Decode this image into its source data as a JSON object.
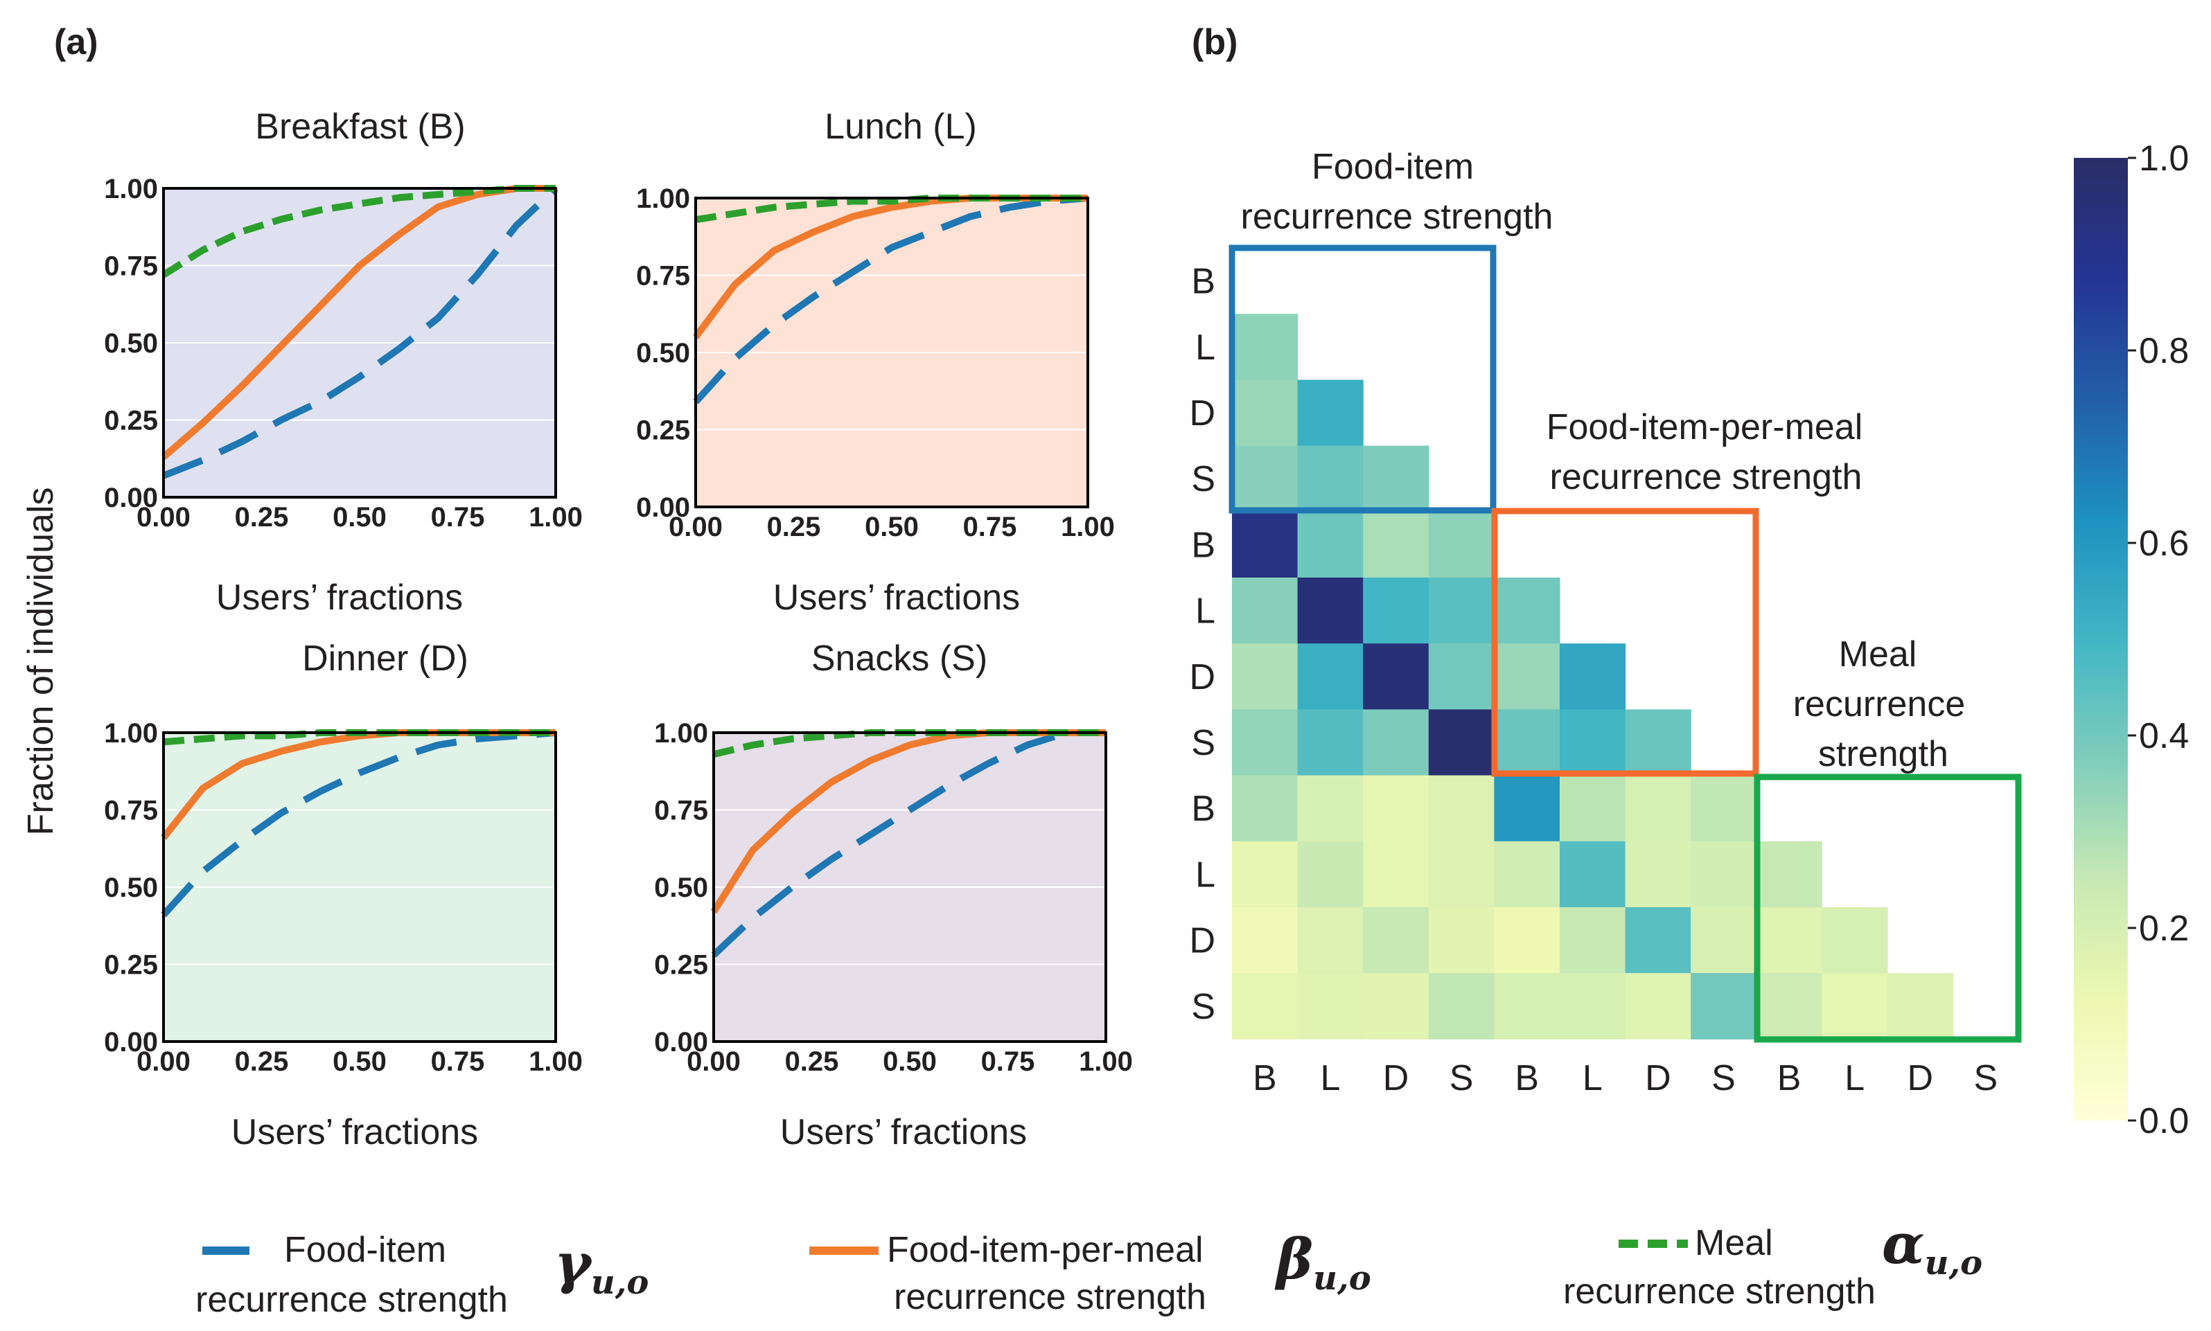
{
  "panel_labels": {
    "a": "(a)",
    "b": "(b)"
  },
  "colors": {
    "food_item": "#1f77b4",
    "food_item_per_meal": "#f07b2e",
    "meal": "#2ca02c",
    "bg_breakfast": "#dfe1f1",
    "bg_lunch": "#fde2d5",
    "bg_dinner": "#e1f2e6",
    "bg_snacks": "#e6dee9",
    "box_food_item": "#1f77b4",
    "box_food_item_per_meal": "#f26a2e",
    "box_meal": "#19a84b"
  },
  "legend": {
    "food_item": {
      "line1": "Food-item",
      "line2": "recurrence strength",
      "symbol": "γ",
      "sub": "u,o"
    },
    "food_item_per_meal": {
      "line1": "Food-item-per-meal",
      "line2": "recurrence strength",
      "symbol": "β",
      "sub": "u,o"
    },
    "meal": {
      "line1": "Meal",
      "line2": "recurrence strength",
      "symbol": "α",
      "sub": "u,o"
    }
  },
  "chart_data": [
    {
      "type": "line",
      "title": "Breakfast (B)",
      "xlabel": "Users’ fractions",
      "ylabel": "Fraction of individuals",
      "xlim": [
        0,
        1
      ],
      "ylim": [
        0,
        1
      ],
      "xticks": [
        "0.00",
        "0.25",
        "0.50",
        "0.75",
        "1.00"
      ],
      "yticks": [
        "0.00",
        "0.25",
        "0.50",
        "0.75",
        "1.00"
      ],
      "x": [
        0,
        0.1,
        0.2,
        0.3,
        0.4,
        0.5,
        0.6,
        0.7,
        0.8,
        0.9,
        1.0
      ],
      "series": [
        {
          "name": "Food-item recurrence strength",
          "values": [
            0.07,
            0.12,
            0.18,
            0.25,
            0.31,
            0.39,
            0.48,
            0.58,
            0.72,
            0.88,
            1.0
          ]
        },
        {
          "name": "Food-item-per-meal recurrence strength",
          "values": [
            0.13,
            0.24,
            0.36,
            0.49,
            0.62,
            0.75,
            0.85,
            0.94,
            0.98,
            1.0,
            1.0
          ]
        },
        {
          "name": "Meal recurrence strength",
          "values": [
            0.72,
            0.8,
            0.86,
            0.9,
            0.93,
            0.95,
            0.97,
            0.98,
            0.99,
            1.0,
            1.0
          ]
        }
      ]
    },
    {
      "type": "line",
      "title": "Lunch (L)",
      "xlabel": "Users’ fractions",
      "xlim": [
        0,
        1
      ],
      "ylim": [
        0,
        1
      ],
      "xticks": [
        "0.00",
        "0.25",
        "0.50",
        "0.75",
        "1.00"
      ],
      "yticks": [
        "0.00",
        "0.25",
        "0.50",
        "0.75",
        "1.00"
      ],
      "x": [
        0,
        0.1,
        0.2,
        0.3,
        0.4,
        0.5,
        0.6,
        0.7,
        0.8,
        0.9,
        1.0
      ],
      "series": [
        {
          "name": "Food-item recurrence strength",
          "values": [
            0.34,
            0.48,
            0.59,
            0.68,
            0.76,
            0.84,
            0.89,
            0.94,
            0.97,
            0.99,
            1.0
          ]
        },
        {
          "name": "Food-item-per-meal recurrence strength",
          "values": [
            0.55,
            0.72,
            0.83,
            0.89,
            0.94,
            0.97,
            0.99,
            1.0,
            1.0,
            1.0,
            1.0
          ]
        },
        {
          "name": "Meal recurrence strength",
          "values": [
            0.93,
            0.95,
            0.97,
            0.98,
            0.99,
            0.99,
            1.0,
            1.0,
            1.0,
            1.0,
            1.0
          ]
        }
      ]
    },
    {
      "type": "line",
      "title": "Dinner (D)",
      "xlabel": "Users’ fractions",
      "xlim": [
        0,
        1
      ],
      "ylim": [
        0,
        1
      ],
      "xticks": [
        "0.00",
        "0.25",
        "0.50",
        "0.75",
        "1.00"
      ],
      "yticks": [
        "0.00",
        "0.25",
        "0.50",
        "0.75",
        "1.00"
      ],
      "x": [
        0,
        0.1,
        0.2,
        0.3,
        0.4,
        0.5,
        0.6,
        0.7,
        0.8,
        0.9,
        1.0
      ],
      "series": [
        {
          "name": "Food-item recurrence strength",
          "values": [
            0.41,
            0.55,
            0.65,
            0.74,
            0.81,
            0.87,
            0.92,
            0.96,
            0.98,
            0.99,
            1.0
          ]
        },
        {
          "name": "Food-item-per-meal recurrence strength",
          "values": [
            0.66,
            0.82,
            0.9,
            0.94,
            0.97,
            0.99,
            1.0,
            1.0,
            1.0,
            1.0,
            1.0
          ]
        },
        {
          "name": "Meal recurrence strength",
          "values": [
            0.97,
            0.98,
            0.99,
            0.99,
            1.0,
            1.0,
            1.0,
            1.0,
            1.0,
            1.0,
            1.0
          ]
        }
      ]
    },
    {
      "type": "line",
      "title": "Snacks (S)",
      "xlabel": "Users’ fractions",
      "xlim": [
        0,
        1
      ],
      "ylim": [
        0,
        1
      ],
      "xticks": [
        "0.00",
        "0.25",
        "0.50",
        "0.75",
        "1.00"
      ],
      "yticks": [
        "0.00",
        "0.25",
        "0.50",
        "0.75",
        "1.00"
      ],
      "x": [
        0,
        0.1,
        0.2,
        0.3,
        0.4,
        0.5,
        0.6,
        0.7,
        0.8,
        0.9,
        1.0
      ],
      "series": [
        {
          "name": "Food-item recurrence strength",
          "values": [
            0.28,
            0.4,
            0.5,
            0.59,
            0.67,
            0.75,
            0.83,
            0.9,
            0.96,
            1.0,
            1.0
          ]
        },
        {
          "name": "Food-item-per-meal recurrence strength",
          "values": [
            0.42,
            0.62,
            0.74,
            0.84,
            0.91,
            0.96,
            0.99,
            1.0,
            1.0,
            1.0,
            1.0
          ]
        },
        {
          "name": "Meal recurrence strength",
          "values": [
            0.93,
            0.96,
            0.98,
            0.99,
            1.0,
            1.0,
            1.0,
            1.0,
            1.0,
            1.0,
            1.0
          ]
        }
      ]
    },
    {
      "type": "heatmap",
      "row_labels": [
        "B",
        "L",
        "D",
        "S",
        "B",
        "L",
        "D",
        "S",
        "B",
        "L",
        "D",
        "S"
      ],
      "col_labels": [
        "B",
        "L",
        "D",
        "S",
        "B",
        "L",
        "D",
        "S",
        "B",
        "L",
        "D",
        "S"
      ],
      "box_titles": {
        "food_item": [
          "Food-item",
          "recurrence strength"
        ],
        "food_item_per_meal": [
          "Food-item-per-meal",
          "recurrence strength"
        ],
        "meal": [
          "Meal",
          "recurrence",
          "strength"
        ]
      },
      "colorbar": {
        "min": 0.0,
        "max": 1.0,
        "ticks": [
          "0.0",
          "0.2",
          "0.4",
          "0.6",
          "0.8",
          "1.0"
        ]
      },
      "values": [
        [
          null,
          null,
          null,
          null,
          null,
          null,
          null,
          null,
          null,
          null,
          null,
          null
        ],
        [
          0.35,
          null,
          null,
          null,
          null,
          null,
          null,
          null,
          null,
          null,
          null,
          null
        ],
        [
          0.33,
          0.52,
          null,
          null,
          null,
          null,
          null,
          null,
          null,
          null,
          null,
          null
        ],
        [
          0.36,
          0.42,
          0.38,
          null,
          null,
          null,
          null,
          null,
          null,
          null,
          null,
          null
        ],
        [
          0.92,
          0.41,
          0.3,
          0.35,
          null,
          null,
          null,
          null,
          null,
          null,
          null,
          null
        ],
        [
          0.36,
          0.95,
          0.5,
          0.45,
          0.4,
          null,
          null,
          null,
          null,
          null,
          null,
          null
        ],
        [
          0.29,
          0.52,
          0.95,
          0.4,
          0.33,
          0.55,
          null,
          null,
          null,
          null,
          null,
          null
        ],
        [
          0.34,
          0.46,
          0.38,
          0.98,
          0.42,
          0.5,
          0.42,
          null,
          null,
          null,
          null,
          null
        ],
        [
          0.29,
          0.2,
          0.15,
          0.18,
          0.6,
          0.27,
          0.2,
          0.26,
          null,
          null,
          null,
          null
        ],
        [
          0.14,
          0.24,
          0.15,
          0.18,
          0.22,
          0.46,
          0.19,
          0.21,
          0.25,
          null,
          null,
          null
        ],
        [
          0.1,
          0.18,
          0.25,
          0.16,
          0.12,
          0.25,
          0.45,
          0.19,
          0.17,
          0.2,
          null,
          null
        ],
        [
          0.15,
          0.17,
          0.16,
          0.26,
          0.2,
          0.2,
          0.17,
          0.4,
          0.23,
          0.15,
          0.18,
          null
        ]
      ]
    }
  ]
}
